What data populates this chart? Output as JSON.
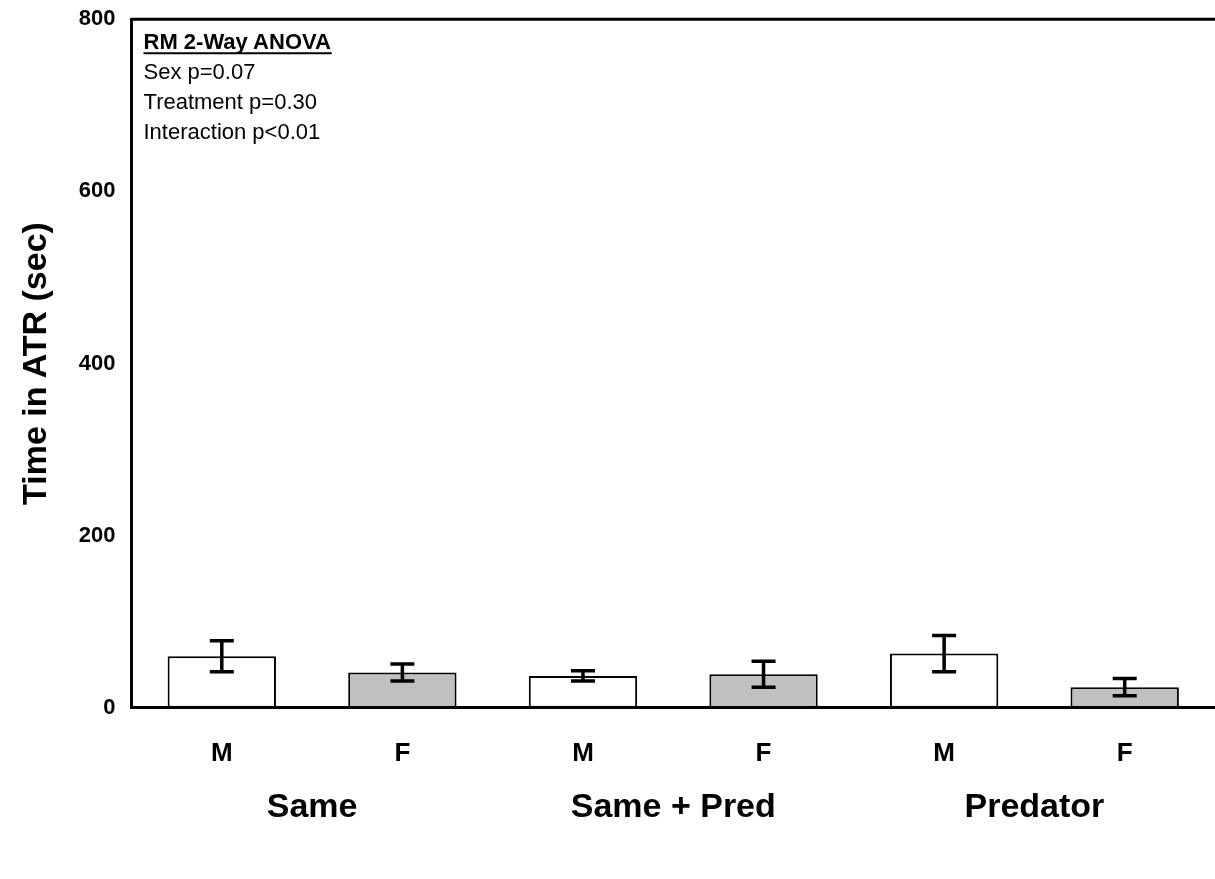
{
  "chart_data": {
    "type": "bar",
    "ylabel": "Time in ATR (sec)",
    "categories": [
      "M",
      "F",
      "M",
      "F",
      "M",
      "F"
    ],
    "values": [
      60,
      41,
      37,
      39,
      63,
      24
    ],
    "errors": [
      18,
      10,
      6,
      15,
      21,
      10
    ],
    "colors": [
      "#ffffff",
      "#c0c0c0",
      "#ffffff",
      "#c0c0c0",
      "#ffffff",
      "#c0c0c0"
    ],
    "ylim": [
      0,
      800
    ],
    "yticks": [
      0,
      200,
      400,
      600,
      800
    ],
    "grid": false,
    "legend": false,
    "annotations": [
      "RM 2-Way ANOVA",
      "Sex p=0.07",
      "Treatment p=0.30",
      "Interaction p<0.01",
      "Same",
      "Same + Pred",
      "Predator"
    ]
  }
}
